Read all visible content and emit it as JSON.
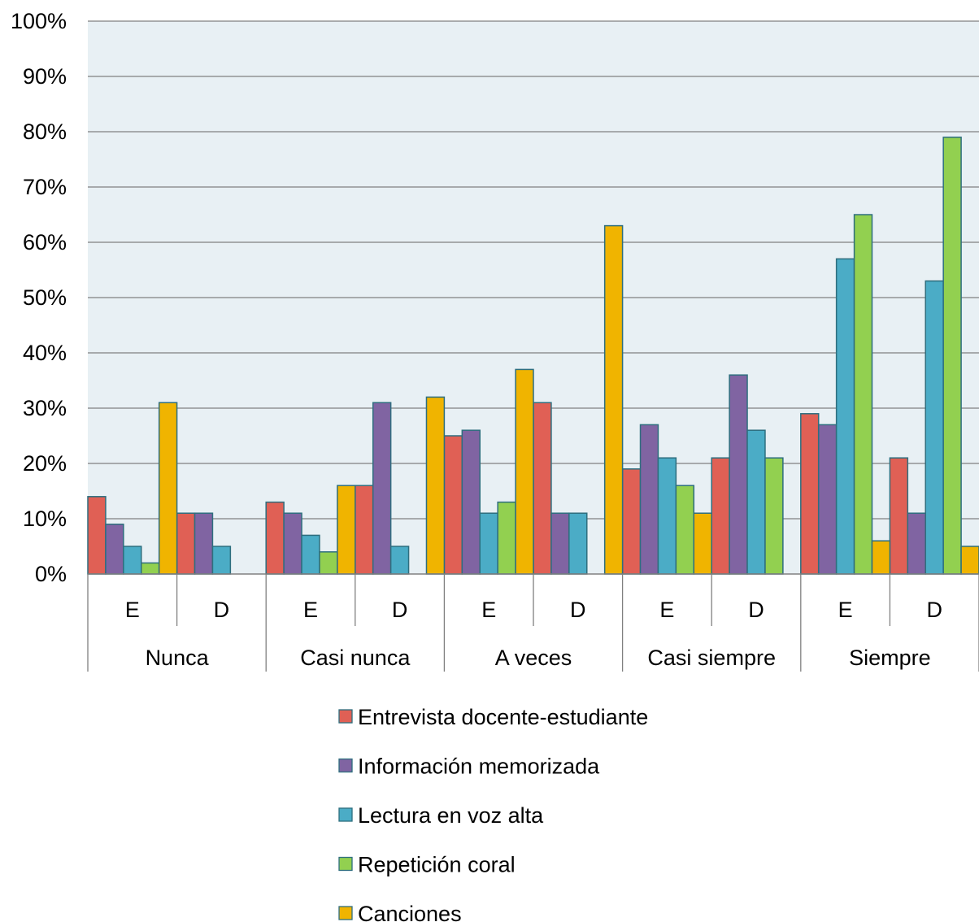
{
  "chart_data": {
    "type": "bar",
    "groups": [
      "Nunca",
      "Casi nunca",
      "A veces",
      "Casi siempre",
      "Siempre"
    ],
    "subcategories": [
      "E",
      "D"
    ],
    "categories": [
      "Nunca E",
      "Nunca D",
      "Casi nunca E",
      "Casi nunca D",
      "A veces E",
      "A veces D",
      "Casi siempre E",
      "Casi siempre D",
      "Siempre E",
      "Siempre D"
    ],
    "series": [
      {
        "name": "Entrevista docente-estudiante",
        "color": "#E06055",
        "values": [
          14,
          11,
          13,
          16,
          25,
          31,
          19,
          21,
          29,
          21
        ]
      },
      {
        "name": "Información memorizada",
        "color": "#8064A2",
        "values": [
          9,
          11,
          11,
          31,
          26,
          11,
          27,
          36,
          27,
          11
        ]
      },
      {
        "name": "Lectura en voz alta",
        "color": "#4BACC6",
        "values": [
          5,
          5,
          7,
          5,
          11,
          11,
          21,
          26,
          57,
          53
        ]
      },
      {
        "name": "Repetición coral",
        "color": "#92D050",
        "values": [
          2,
          0,
          4,
          0,
          13,
          0,
          16,
          21,
          65,
          79
        ]
      },
      {
        "name": "Canciones",
        "color": "#F0B400",
        "values": [
          31,
          0,
          16,
          32,
          37,
          63,
          11,
          0,
          6,
          5
        ]
      }
    ],
    "ylim": [
      0,
      100
    ],
    "ytick_step": 10,
    "ytick_labels": [
      "0%",
      "10%",
      "20%",
      "30%",
      "40%",
      "50%",
      "60%",
      "70%",
      "80%",
      "90%",
      "100%"
    ],
    "grid": true,
    "legend_position": "bottom",
    "plot_background": "#E8F0F4",
    "gridline_color": "#808080",
    "bar_outline_color": "#2E6E7E"
  }
}
